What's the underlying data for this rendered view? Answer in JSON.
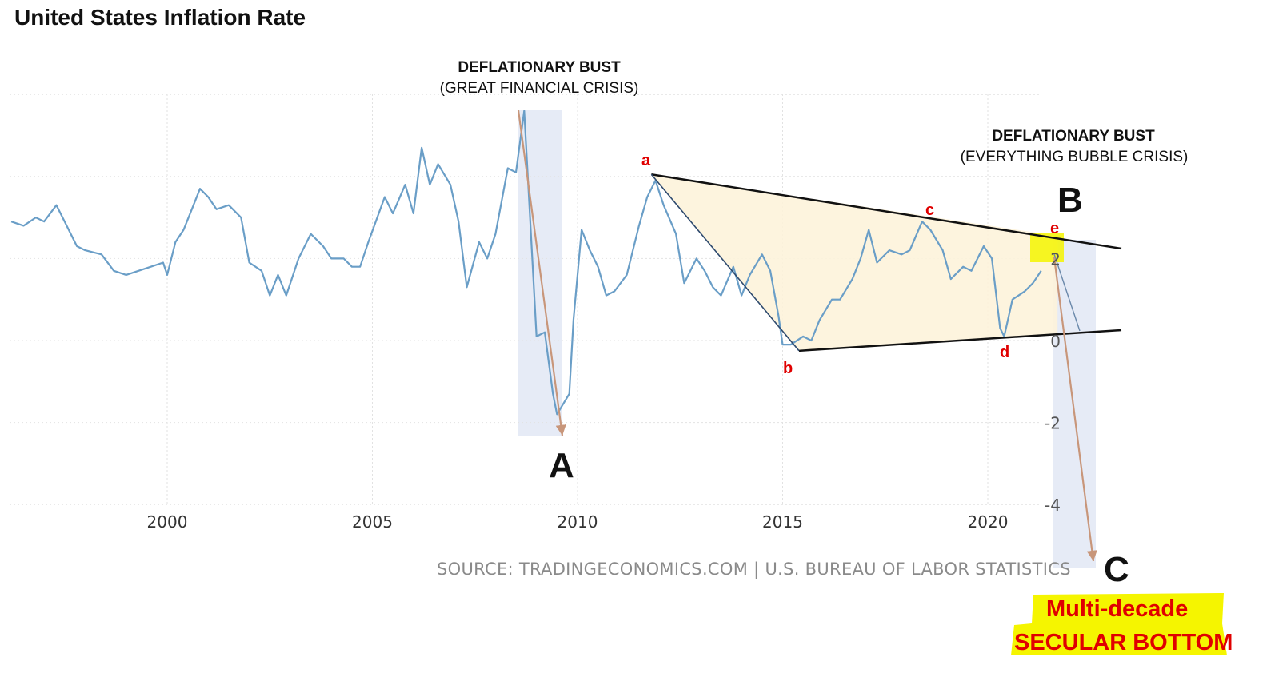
{
  "title": "United States Inflation Rate",
  "source": "SOURCE: TRADINGECONOMICS.COM | U.S. BUREAU OF LABOR STATISTICS",
  "annotations": {
    "gfc_head": "DEFLATIONARY BUST",
    "gfc_sub": "(GREAT FINANCIAL CRISIS)",
    "ebc_head": "DEFLATIONARY BUST",
    "ebc_sub": "(EVERYTHING BUBBLE CRISIS)",
    "point_A": "A",
    "point_B": "B",
    "point_C": "C",
    "wave_a": "a",
    "wave_b": "b",
    "wave_c": "c",
    "wave_d": "d",
    "wave_e": "e",
    "callout_line1": "Multi-decade",
    "callout_line2": "SECULAR BOTTOM"
  },
  "colors": {
    "series": "#6a9ec7",
    "arrow": "#c8967a",
    "triangle_fill": "#fdf3da",
    "band": "#e6ebf6",
    "wave_label": "#e00000",
    "highlight": "#f5f500"
  },
  "chart_data": {
    "type": "line",
    "title": "United States Inflation Rate",
    "xlabel": "",
    "ylabel": "",
    "xlim": [
      1996.2,
      2021.6
    ],
    "ylim": [
      -4.4,
      6
    ],
    "x_ticks": [
      2000,
      2005,
      2010,
      2015,
      2020
    ],
    "y_ticks": [
      2,
      0,
      -2,
      -4
    ],
    "grid": true,
    "series": [
      {
        "values": [
          [
            1996.2,
            2.9
          ],
          [
            1996.5,
            2.8
          ],
          [
            1996.8,
            3.0
          ],
          [
            1997.0,
            2.9
          ],
          [
            1997.3,
            3.3
          ],
          [
            1997.5,
            2.9
          ],
          [
            1997.8,
            2.3
          ],
          [
            1998.0,
            2.2
          ],
          [
            1998.4,
            2.1
          ],
          [
            1998.7,
            1.7
          ],
          [
            1999.0,
            1.6
          ],
          [
            1999.3,
            1.7
          ],
          [
            1999.6,
            1.8
          ],
          [
            1999.9,
            1.9
          ],
          [
            2000.0,
            1.6
          ],
          [
            2000.2,
            2.4
          ],
          [
            2000.4,
            2.7
          ],
          [
            2000.6,
            3.2
          ],
          [
            2000.8,
            3.7
          ],
          [
            2001.0,
            3.5
          ],
          [
            2001.2,
            3.2
          ],
          [
            2001.5,
            3.3
          ],
          [
            2001.8,
            3.0
          ],
          [
            2002.0,
            1.9
          ],
          [
            2002.3,
            1.7
          ],
          [
            2002.5,
            1.1
          ],
          [
            2002.7,
            1.6
          ],
          [
            2002.9,
            1.1
          ],
          [
            2003.2,
            2.0
          ],
          [
            2003.5,
            2.6
          ],
          [
            2003.8,
            2.3
          ],
          [
            2004.0,
            2.0
          ],
          [
            2004.3,
            2.0
          ],
          [
            2004.5,
            1.8
          ],
          [
            2004.7,
            1.8
          ],
          [
            2004.9,
            2.4
          ],
          [
            2005.3,
            3.5
          ],
          [
            2005.5,
            3.1
          ],
          [
            2005.8,
            3.8
          ],
          [
            2006.0,
            3.1
          ],
          [
            2006.2,
            4.7
          ],
          [
            2006.4,
            3.8
          ],
          [
            2006.6,
            4.3
          ],
          [
            2006.9,
            3.8
          ],
          [
            2007.1,
            2.9
          ],
          [
            2007.3,
            1.3
          ],
          [
            2007.6,
            2.4
          ],
          [
            2007.8,
            2.0
          ],
          [
            2008.0,
            2.6
          ],
          [
            2008.3,
            4.2
          ],
          [
            2008.5,
            4.1
          ],
          [
            2008.7,
            5.6
          ],
          [
            2009.0,
            0.1
          ],
          [
            2009.2,
            0.2
          ],
          [
            2009.4,
            -1.3
          ],
          [
            2009.5,
            -1.8
          ],
          [
            2009.8,
            -1.3
          ],
          [
            2009.9,
            0.5
          ],
          [
            2010.1,
            2.7
          ],
          [
            2010.3,
            2.2
          ],
          [
            2010.5,
            1.8
          ],
          [
            2010.7,
            1.1
          ],
          [
            2010.9,
            1.2
          ],
          [
            2011.2,
            1.6
          ],
          [
            2011.5,
            2.8
          ],
          [
            2011.7,
            3.5
          ],
          [
            2011.9,
            3.9
          ],
          [
            2012.1,
            3.3
          ],
          [
            2012.4,
            2.6
          ],
          [
            2012.6,
            1.4
          ],
          [
            2012.9,
            2.0
          ],
          [
            2013.1,
            1.7
          ],
          [
            2013.3,
            1.3
          ],
          [
            2013.5,
            1.1
          ],
          [
            2013.8,
            1.8
          ],
          [
            2014.0,
            1.1
          ],
          [
            2014.2,
            1.6
          ],
          [
            2014.5,
            2.1
          ],
          [
            2014.7,
            1.7
          ],
          [
            2014.9,
            0.6
          ],
          [
            2015.0,
            -0.1
          ],
          [
            2015.2,
            -0.1
          ],
          [
            2015.5,
            0.1
          ],
          [
            2015.7,
            0.0
          ],
          [
            2015.9,
            0.5
          ],
          [
            2016.2,
            1.0
          ],
          [
            2016.4,
            1.0
          ],
          [
            2016.7,
            1.5
          ],
          [
            2016.9,
            2.0
          ],
          [
            2017.1,
            2.7
          ],
          [
            2017.3,
            1.9
          ],
          [
            2017.6,
            2.2
          ],
          [
            2017.9,
            2.1
          ],
          [
            2018.1,
            2.2
          ],
          [
            2018.4,
            2.9
          ],
          [
            2018.6,
            2.7
          ],
          [
            2018.9,
            2.2
          ],
          [
            2019.1,
            1.5
          ],
          [
            2019.4,
            1.8
          ],
          [
            2019.6,
            1.7
          ],
          [
            2019.9,
            2.3
          ],
          [
            2020.1,
            2.0
          ],
          [
            2020.3,
            0.3
          ],
          [
            2020.4,
            0.1
          ],
          [
            2020.6,
            1.0
          ],
          [
            2020.9,
            1.2
          ],
          [
            2021.1,
            1.4
          ],
          [
            2021.3,
            1.7
          ]
        ]
      }
    ]
  }
}
